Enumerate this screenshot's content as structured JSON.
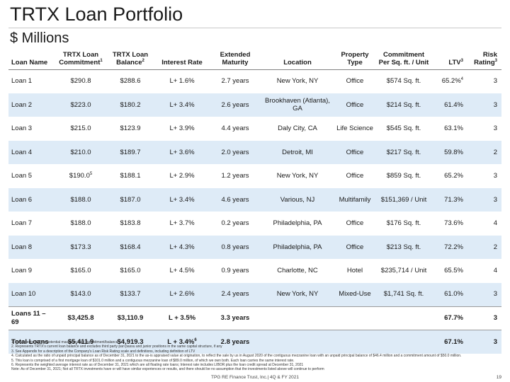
{
  "title": "TRTX Loan Portfolio",
  "subtitle": "$ Millions",
  "columns": {
    "loan_name": "Loan Name",
    "commitment": "TRTX Loan Commitment",
    "commitment_note": "1",
    "balance": "TRTX Loan Balance",
    "balance_note": "2",
    "interest": "Interest Rate",
    "maturity": "Extended Maturity",
    "location": "Location",
    "property_type": "Property Type",
    "per_sqft": "Commitment Per Sq. ft. / Unit",
    "ltv": "LTV",
    "ltv_note": "3",
    "risk": "Risk Rating",
    "risk_note": "3"
  },
  "rows": [
    {
      "name": "Loan 1",
      "commitment": "$290.8",
      "commitment_note": "",
      "balance": "$288.6",
      "rate": "L+ 1.6%",
      "rate_note": "",
      "maturity": "2.7 years",
      "location": "New York, NY",
      "type": "Office",
      "per_unit": "$574 Sq. ft.",
      "ltv": "65.2%",
      "ltv_note": "4",
      "risk": "3"
    },
    {
      "name": "Loan 2",
      "commitment": "$223.0",
      "commitment_note": "",
      "balance": "$180.2",
      "rate": "L+ 3.4%",
      "rate_note": "",
      "maturity": "2.6 years",
      "location": "Brookhaven (Atlanta), GA",
      "type": "Office",
      "per_unit": "$214 Sq. ft.",
      "ltv": "61.4%",
      "ltv_note": "",
      "risk": "3"
    },
    {
      "name": "Loan 3",
      "commitment": "$215.0",
      "commitment_note": "",
      "balance": "$123.9",
      "rate": "L+ 3.9%",
      "rate_note": "",
      "maturity": "4.4 years",
      "location": "Daly City, CA",
      "type": "Life Science",
      "per_unit": "$545 Sq. ft.",
      "ltv": "63.1%",
      "ltv_note": "",
      "risk": "3"
    },
    {
      "name": "Loan 4",
      "commitment": "$210.0",
      "commitment_note": "",
      "balance": "$189.7",
      "rate": "L+ 3.6%",
      "rate_note": "",
      "maturity": "2.0 years",
      "location": "Detroit, MI",
      "type": "Office",
      "per_unit": "$217 Sq. ft.",
      "ltv": "59.8%",
      "ltv_note": "",
      "risk": "2"
    },
    {
      "name": "Loan 5",
      "commitment": "$190.0",
      "commitment_note": "5",
      "balance": "$188.1",
      "rate": "L+ 2.9%",
      "rate_note": "",
      "maturity": "1.2 years",
      "location": "New York, NY",
      "type": "Office",
      "per_unit": "$859 Sq. ft.",
      "ltv": "65.2%",
      "ltv_note": "",
      "risk": "3"
    },
    {
      "name": "Loan 6",
      "commitment": "$188.0",
      "commitment_note": "",
      "balance": "$187.0",
      "rate": "L+ 3.4%",
      "rate_note": "",
      "maturity": "4.6 years",
      "location": "Various, NJ",
      "type": "Multifamily",
      "per_unit": "$151,369 / Unit",
      "ltv": "71.3%",
      "ltv_note": "",
      "risk": "3"
    },
    {
      "name": "Loan 7",
      "commitment": "$188.0",
      "commitment_note": "",
      "balance": "$183.8",
      "rate": "L+ 3.7%",
      "rate_note": "",
      "maturity": "0.2 years",
      "location": "Philadelphia, PA",
      "type": "Office",
      "per_unit": "$176 Sq. ft.",
      "ltv": "73.6%",
      "ltv_note": "",
      "risk": "4"
    },
    {
      "name": "Loan 8",
      "commitment": "$173.3",
      "commitment_note": "",
      "balance": "$168.4",
      "rate": "L+ 4.3%",
      "rate_note": "",
      "maturity": "0.8 years",
      "location": "Philadelphia, PA",
      "type": "Office",
      "per_unit": "$213 Sq. ft.",
      "ltv": "72.2%",
      "ltv_note": "",
      "risk": "2"
    },
    {
      "name": "Loan 9",
      "commitment": "$165.0",
      "commitment_note": "",
      "balance": "$165.0",
      "rate": "L+ 4.5%",
      "rate_note": "",
      "maturity": "0.9 years",
      "location": "Charlotte, NC",
      "type": "Hotel",
      "per_unit": "$235,714 / Unit",
      "ltv": "65.5%",
      "ltv_note": "",
      "risk": "4"
    },
    {
      "name": "Loan 10",
      "commitment": "$143.0",
      "commitment_note": "",
      "balance": "$133.7",
      "rate": "L+ 2.6%",
      "rate_note": "",
      "maturity": "2.4 years",
      "location": "New York, NY",
      "type": "Mixed-Use",
      "per_unit": "$1,741 Sq. ft.",
      "ltv": "61.0%",
      "ltv_note": "",
      "risk": "3"
    }
  ],
  "totals": [
    {
      "name": "Loans 11 – 69",
      "commitment": "$3,425.8",
      "balance": "$3,110.9",
      "rate": "L + 3.5%",
      "rate_note": "",
      "maturity": "3.3 years",
      "ltv": "67.7%",
      "risk": "3"
    },
    {
      "name": "Total Loans",
      "commitment": "$5,411.9",
      "balance": "$4,919.3",
      "rate": "L + 3.4%",
      "rate_note": "6",
      "maturity": "2.8 years",
      "ltv": "67.1%",
      "risk": "3"
    }
  ],
  "footnotes": [
    "1. Represents TRTX's potential maximum loan commitment/balance",
    "2. Represents TRTX's current loan balance and excludes third party pari passu and junior positions in the same capital structure, if any",
    "3. See Appendix for a description of the Company's Loan Risk Rating scale and definitions, including definition of LTV",
    "4. Calculated as the ratio of unpaid principal balance as of December 31, 2021 to the as-is appraised value at origination, to reflect the sale by us in August 2020 of the contiguous mezzanine loan with an unpaid principal balance of $46.4 million and a commitment amount of $50.0 million.",
    "5. This loan is comprised of a first mortgage loan of $101.0 million and a contiguous mezzanine loan of $89.0 million, of which we own both. Each loan carries the same interest rate.",
    "6. Represents the weighted average interest rate as of December 31, 2021 which are all floating rate loans; Interest rate includes LIBOR plus the loan credit spread at December 31, 2021",
    "Note: As of December 31, 2021; Not all TRTX investments have or will have similar experiences or results, and there should be no assumption that the investments listed above will continue to perform"
  ],
  "footer": "TPG RE Finance Trust, Inc.| 4Q & FY 2021",
  "page_number": "19"
}
